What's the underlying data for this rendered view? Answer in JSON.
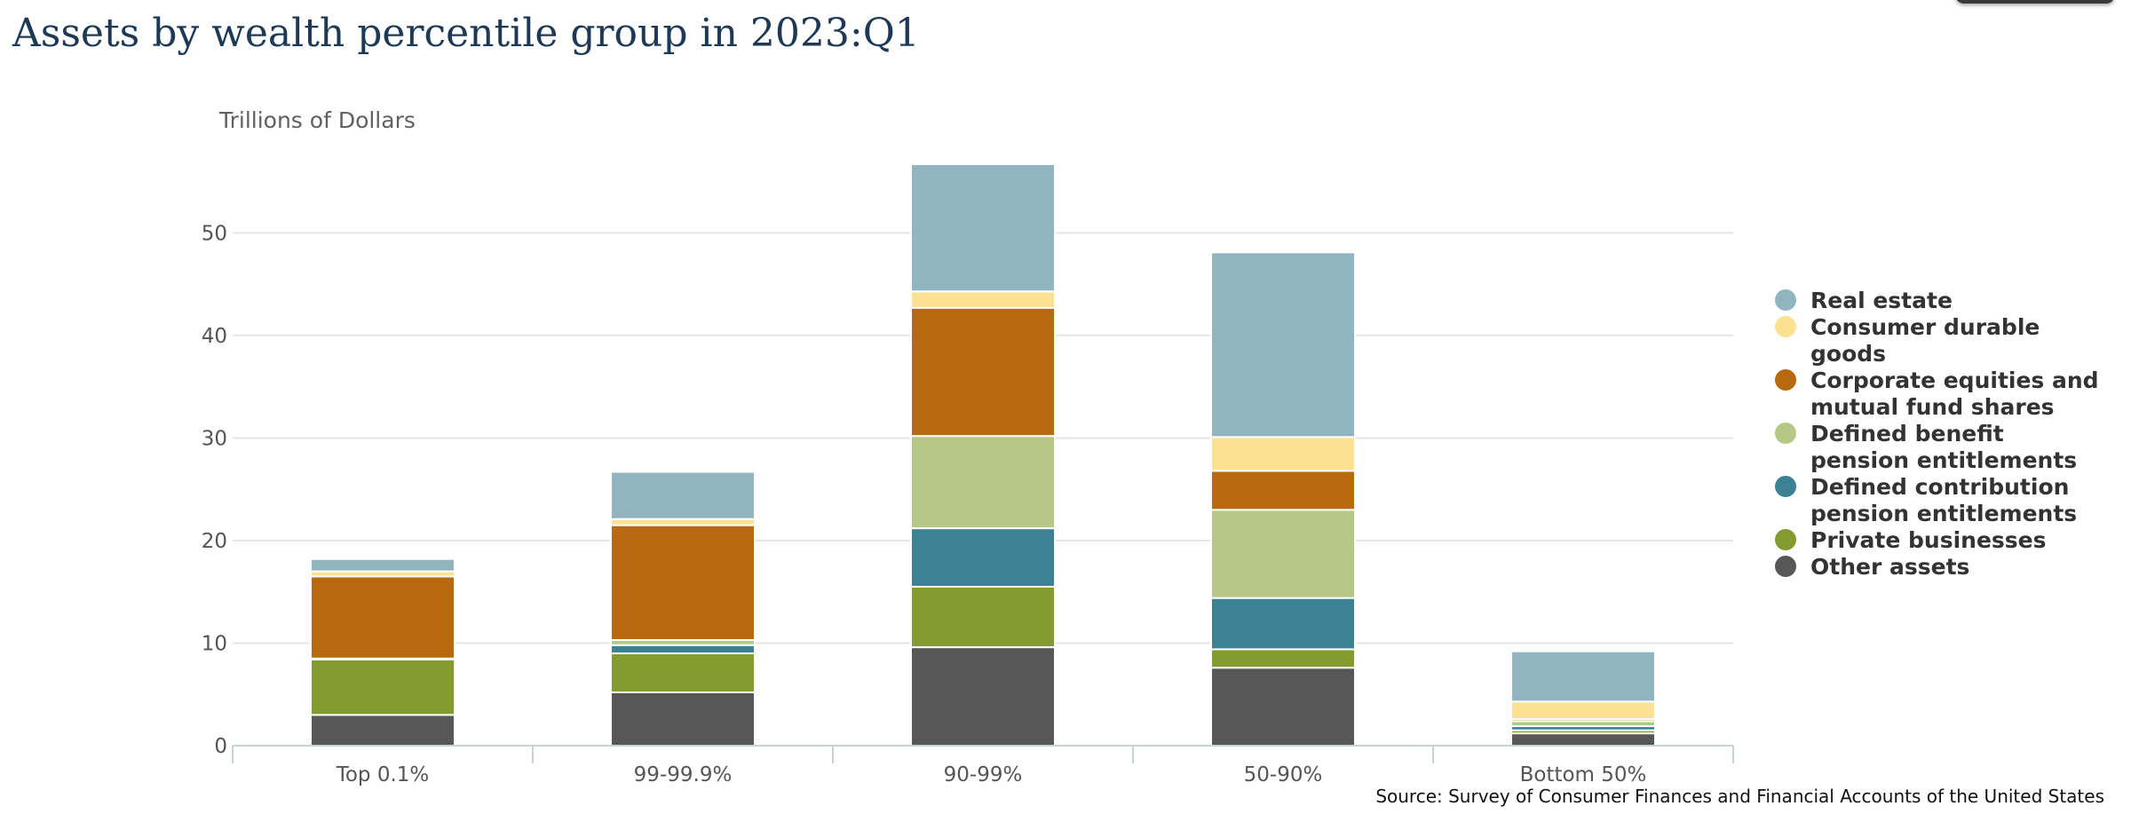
{
  "chart_data": {
    "type": "bar",
    "stacked": true,
    "title": "Assets by wealth percentile group in 2023:Q1",
    "ylabel": "Trillions of Dollars",
    "xlabel": "",
    "categories": [
      "Top 0.1%",
      "99-99.9%",
      "90-99%",
      "50-90%",
      "Bottom 50%"
    ],
    "ylim": [
      0,
      58
    ],
    "yticks": [
      0,
      10,
      20,
      30,
      40,
      50
    ],
    "grid": true,
    "legend_position": "right",
    "series": [
      {
        "name": "Other assets",
        "color": "#575757",
        "values": [
          3.0,
          5.2,
          9.6,
          7.6,
          1.2
        ]
      },
      {
        "name": "Private businesses",
        "color": "#839b2f",
        "values": [
          5.4,
          3.8,
          5.9,
          1.8,
          0.3
        ]
      },
      {
        "name": "Defined contribution pension entitlements",
        "color": "#3d8194",
        "values": [
          0.0,
          0.8,
          5.7,
          5.0,
          0.4
        ]
      },
      {
        "name": "Defined benefit pension entitlements",
        "color": "#b5c886",
        "values": [
          0.1,
          0.5,
          9.0,
          8.6,
          0.5
        ]
      },
      {
        "name": "Corporate equities and mutual fund shares",
        "color": "#b9690f",
        "values": [
          8.0,
          11.2,
          12.5,
          3.8,
          0.2
        ]
      },
      {
        "name": "Consumer durable goods",
        "color": "#fde192",
        "values": [
          0.5,
          0.6,
          1.6,
          3.3,
          1.7
        ]
      },
      {
        "name": "Real estate",
        "color": "#90b5c0",
        "values": [
          1.2,
          4.6,
          12.4,
          18.0,
          4.9
        ]
      }
    ],
    "legend_order": [
      "Real estate",
      "Consumer durable goods",
      "Corporate equities and mutual fund shares",
      "Defined benefit pension entitlements",
      "Defined contribution pension entitlements",
      "Private businesses",
      "Other assets"
    ],
    "source": "Source: Survey of Consumer Finances and Financial Accounts of the United States"
  },
  "colors": {
    "title": "#1d3956",
    "grid": "#e1e6e8",
    "axis": "#c5d3d8"
  }
}
